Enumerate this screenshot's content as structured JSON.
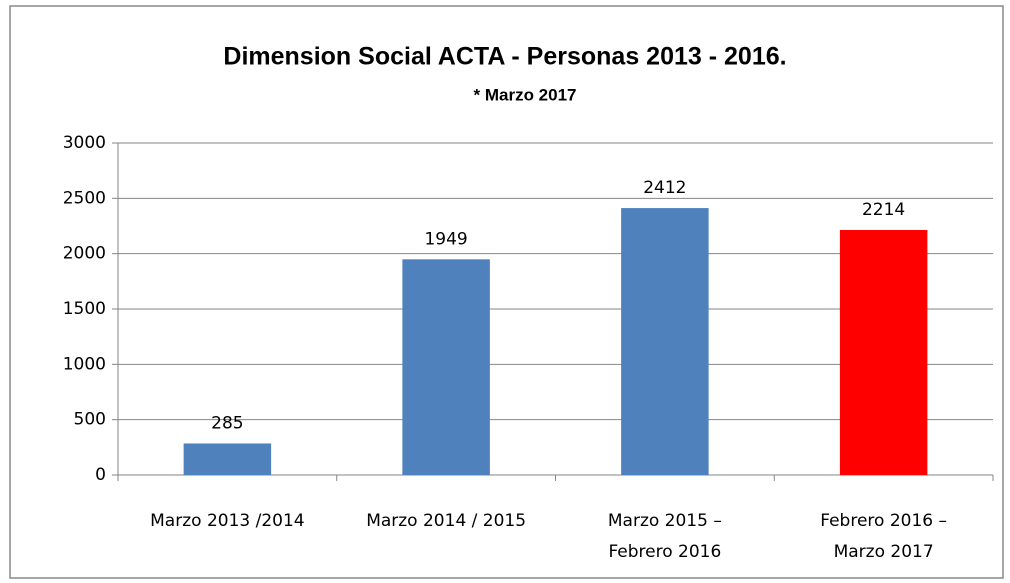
{
  "chart_data": {
    "type": "bar",
    "title": "Dimension Social  ACTA  - Personas 2013 - 2016.",
    "subtitle": "* Marzo 2017",
    "categories": [
      [
        "Marzo 2013 /2014"
      ],
      [
        "Marzo 2014 / 2015"
      ],
      [
        "Marzo 2015 –",
        "Febrero 2016"
      ],
      [
        "Febrero 2016 –",
        "Marzo  2017"
      ]
    ],
    "values": [
      285,
      1949,
      2412,
      2214
    ],
    "colors": [
      "#4f81bd",
      "#4f81bd",
      "#4f81bd",
      "#ff0000"
    ],
    "ylim": [
      0,
      3000
    ],
    "yticks": [
      0,
      500,
      1000,
      1500,
      2000,
      2500,
      3000
    ],
    "grid": true
  }
}
